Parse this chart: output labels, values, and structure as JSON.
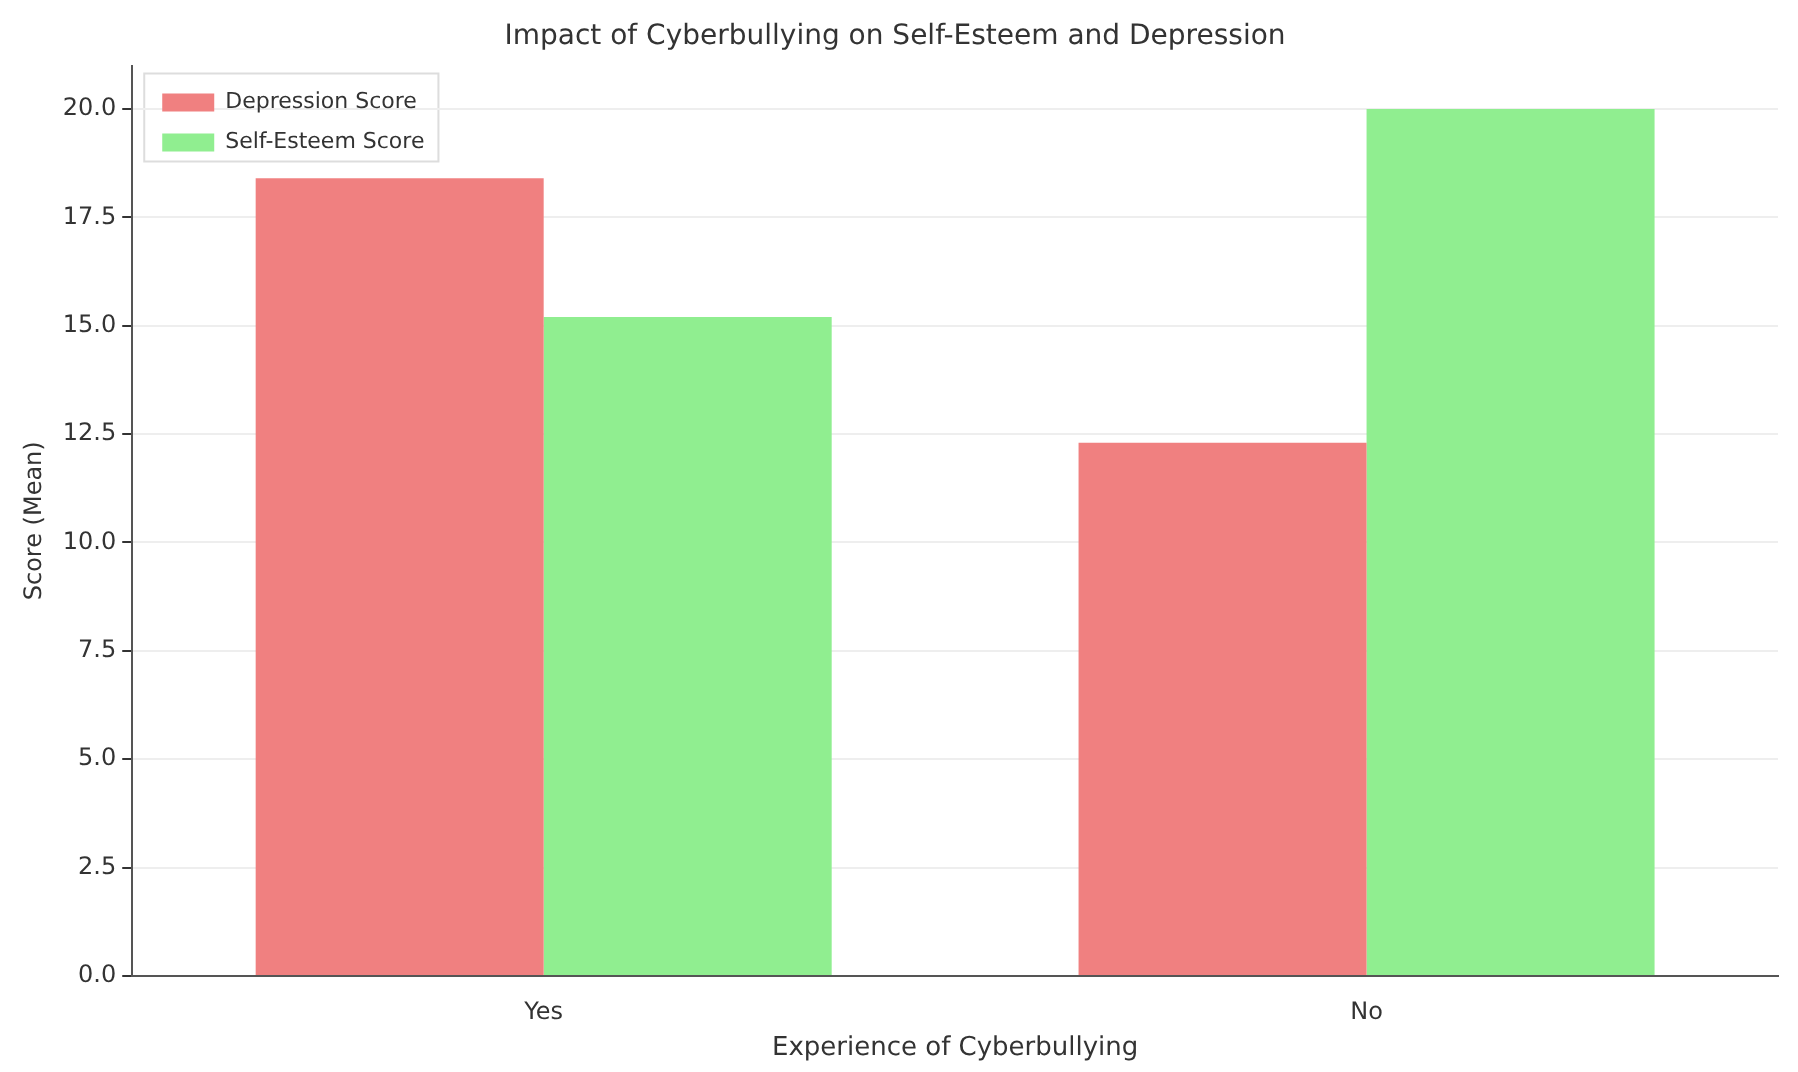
{
  "chart_data": {
    "type": "bar",
    "title": "Impact of Cyberbullying on Self-Esteem and Depression",
    "xlabel": "Experience of Cyberbullying",
    "ylabel": "Score (Mean)",
    "categories": [
      "Yes",
      "No"
    ],
    "series": [
      {
        "name": "Depression Score",
        "color": "#f08080",
        "values": [
          18.4,
          12.3
        ]
      },
      {
        "name": "Self-Esteem Score",
        "color": "#90ee90",
        "values": [
          15.2,
          20.0
        ]
      }
    ],
    "ylim": [
      0,
      21
    ],
    "yticks": [
      {
        "value": 0,
        "label": "0.0"
      },
      {
        "value": 2.5,
        "label": "2.5"
      },
      {
        "value": 5,
        "label": "5.0"
      },
      {
        "value": 7.5,
        "label": "7.5"
      },
      {
        "value": 10,
        "label": "10.0"
      },
      {
        "value": 12.5,
        "label": "12.5"
      },
      {
        "value": 15,
        "label": "15.0"
      },
      {
        "value": 17.5,
        "label": "17.5"
      },
      {
        "value": 20,
        "label": "20.0"
      }
    ],
    "grid": "y",
    "legend": "top left"
  }
}
